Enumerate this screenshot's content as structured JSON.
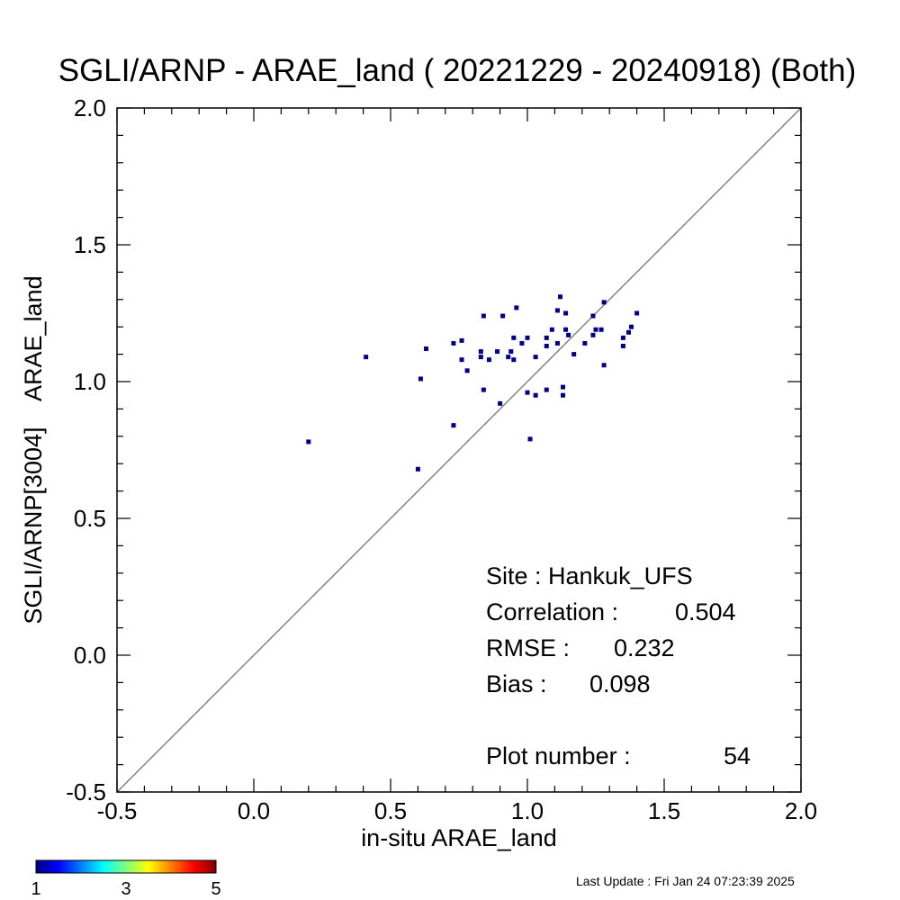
{
  "chart_data": {
    "type": "scatter",
    "title": "SGLI/ARNP - ARAE_land ( 20221229 - 20240918) (Both)",
    "xlabel": "in-situ ARAE_land",
    "ylabel": "SGLI/ARNP[3004]    ARAE_land",
    "xlim": [
      -0.5,
      2.0
    ],
    "ylim": [
      -0.5,
      2.0
    ],
    "xticks": [
      "-0.5",
      "0.0",
      "0.5",
      "1.0",
      "1.5",
      "2.0"
    ],
    "yticks": [
      "-0.5",
      "0.0",
      "0.5",
      "1.0",
      "1.5",
      "2.0"
    ],
    "reference_line": "1:1",
    "reference_line_color": "#808080",
    "marker_color": "#00008b",
    "points": [
      [
        0.2,
        0.78
      ],
      [
        0.41,
        1.09
      ],
      [
        0.6,
        0.68
      ],
      [
        0.61,
        1.01
      ],
      [
        0.63,
        1.12
      ],
      [
        0.73,
        1.14
      ],
      [
        0.73,
        0.84
      ],
      [
        0.76,
        1.15
      ],
      [
        0.76,
        1.08
      ],
      [
        0.78,
        1.04
      ],
      [
        0.83,
        1.09
      ],
      [
        0.83,
        1.11
      ],
      [
        0.84,
        1.24
      ],
      [
        0.84,
        0.97
      ],
      [
        0.86,
        1.08
      ],
      [
        0.89,
        1.11
      ],
      [
        0.9,
        0.92
      ],
      [
        0.91,
        1.24
      ],
      [
        0.93,
        1.09
      ],
      [
        0.94,
        1.11
      ],
      [
        0.95,
        1.08
      ],
      [
        0.95,
        1.16
      ],
      [
        0.96,
        1.27
      ],
      [
        0.98,
        1.14
      ],
      [
        1.0,
        1.16
      ],
      [
        1.0,
        0.96
      ],
      [
        1.01,
        0.79
      ],
      [
        1.03,
        1.09
      ],
      [
        1.03,
        0.95
      ],
      [
        1.07,
        1.16
      ],
      [
        1.07,
        1.13
      ],
      [
        1.07,
        0.97
      ],
      [
        1.09,
        1.19
      ],
      [
        1.11,
        1.26
      ],
      [
        1.11,
        1.14
      ],
      [
        1.12,
        1.31
      ],
      [
        1.13,
        0.98
      ],
      [
        1.13,
        0.95
      ],
      [
        1.14,
        1.25
      ],
      [
        1.14,
        1.19
      ],
      [
        1.15,
        1.17
      ],
      [
        1.17,
        1.1
      ],
      [
        1.21,
        1.14
      ],
      [
        1.24,
        1.24
      ],
      [
        1.24,
        1.17
      ],
      [
        1.25,
        1.19
      ],
      [
        1.27,
        1.19
      ],
      [
        1.28,
        1.06
      ],
      [
        1.28,
        1.29
      ],
      [
        1.35,
        1.13
      ],
      [
        1.35,
        1.16
      ],
      [
        1.37,
        1.18
      ],
      [
        1.38,
        1.2
      ],
      [
        1.4,
        1.25
      ]
    ],
    "stats": {
      "site": "Site : Hankuk_UFS",
      "correlation_label": "Correlation :",
      "correlation": "0.504",
      "rmse_label": "RMSE :",
      "rmse": "0.232",
      "bias_label": "Bias :",
      "bias": "0.098",
      "plot_number_label": "Plot number :",
      "plot_number": "54"
    },
    "colorbar": {
      "colors": [
        "#00007f",
        "#0000ff",
        "#007fff",
        "#00ffff",
        "#7fff7f",
        "#ffff00",
        "#ff7f00",
        "#ff0000",
        "#7f0000"
      ],
      "labels": [
        "1",
        "3",
        "5"
      ]
    }
  },
  "footer": {
    "last_update": "Last Update : Fri Jan 24 07:23:39 2025"
  }
}
